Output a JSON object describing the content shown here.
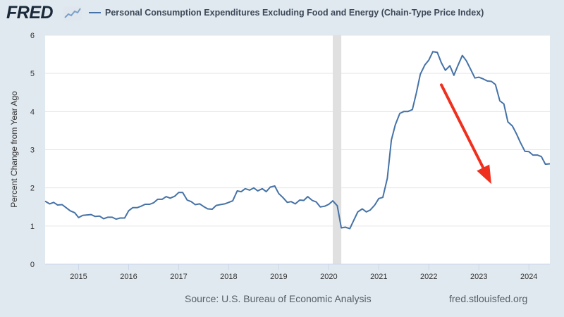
{
  "header": {
    "logo_text": "FRED",
    "logo_icon": "trend-line-icon",
    "legend_label": "Personal Consumption Expenditures Excluding Food and Energy (Chain-Type Price Index)"
  },
  "footer": {
    "source": "Source: U.S. Bureau of Economic Analysis",
    "url": "fred.stlouisfed.org"
  },
  "colors": {
    "series": "#4572a7",
    "arrow": "#f0301e",
    "recession": "#e0e0e0",
    "background": "#e1e9f0",
    "plot_background": "#ffffff"
  },
  "chart_data": {
    "type": "line",
    "title": "",
    "xlabel": "",
    "ylabel": "Percent Change from Year Ago",
    "ylim": [
      0,
      6
    ],
    "yticks": [
      0,
      1,
      2,
      3,
      4,
      5,
      6
    ],
    "xlim": [
      2014.33,
      2024.42
    ],
    "xticks": [
      {
        "label": "2015",
        "value": 2015
      },
      {
        "label": "2016",
        "value": 2016
      },
      {
        "label": "2017",
        "value": 2017
      },
      {
        "label": "2018",
        "value": 2018
      },
      {
        "label": "2019",
        "value": 2019
      },
      {
        "label": "2020",
        "value": 2020
      },
      {
        "label": "2021",
        "value": 2021
      },
      {
        "label": "2022",
        "value": 2022
      },
      {
        "label": "2023",
        "value": 2023
      },
      {
        "label": "2024",
        "value": 2024
      }
    ],
    "grid": true,
    "recession_shading": [
      {
        "start": 2020.08,
        "end": 2020.25
      }
    ],
    "annotation": {
      "type": "arrow",
      "from": [
        2022.25,
        4.7
      ],
      "to": [
        2023.25,
        2.1
      ]
    },
    "series": [
      {
        "name": "Personal Consumption Expenditures Excluding Food and Energy (Chain-Type Price Index)",
        "points": [
          [
            2014.33,
            1.65
          ],
          [
            2014.42,
            1.58
          ],
          [
            2014.5,
            1.62
          ],
          [
            2014.58,
            1.55
          ],
          [
            2014.67,
            1.56
          ],
          [
            2014.75,
            1.48
          ],
          [
            2014.83,
            1.4
          ],
          [
            2014.92,
            1.35
          ],
          [
            2015.0,
            1.22
          ],
          [
            2015.08,
            1.28
          ],
          [
            2015.17,
            1.29
          ],
          [
            2015.25,
            1.3
          ],
          [
            2015.33,
            1.25
          ],
          [
            2015.42,
            1.26
          ],
          [
            2015.5,
            1.19
          ],
          [
            2015.58,
            1.23
          ],
          [
            2015.67,
            1.23
          ],
          [
            2015.75,
            1.18
          ],
          [
            2015.83,
            1.21
          ],
          [
            2015.92,
            1.21
          ],
          [
            2016.0,
            1.4
          ],
          [
            2016.08,
            1.48
          ],
          [
            2016.17,
            1.48
          ],
          [
            2016.25,
            1.52
          ],
          [
            2016.33,
            1.57
          ],
          [
            2016.42,
            1.57
          ],
          [
            2016.5,
            1.61
          ],
          [
            2016.58,
            1.7
          ],
          [
            2016.67,
            1.7
          ],
          [
            2016.75,
            1.77
          ],
          [
            2016.83,
            1.73
          ],
          [
            2016.92,
            1.78
          ],
          [
            2017.0,
            1.88
          ],
          [
            2017.08,
            1.88
          ],
          [
            2017.17,
            1.68
          ],
          [
            2017.25,
            1.64
          ],
          [
            2017.33,
            1.56
          ],
          [
            2017.42,
            1.58
          ],
          [
            2017.5,
            1.51
          ],
          [
            2017.58,
            1.45
          ],
          [
            2017.67,
            1.44
          ],
          [
            2017.75,
            1.54
          ],
          [
            2017.83,
            1.56
          ],
          [
            2017.92,
            1.58
          ],
          [
            2018.0,
            1.62
          ],
          [
            2018.08,
            1.66
          ],
          [
            2018.17,
            1.92
          ],
          [
            2018.25,
            1.9
          ],
          [
            2018.33,
            1.98
          ],
          [
            2018.42,
            1.94
          ],
          [
            2018.5,
            2.0
          ],
          [
            2018.58,
            1.92
          ],
          [
            2018.67,
            1.98
          ],
          [
            2018.75,
            1.9
          ],
          [
            2018.83,
            2.02
          ],
          [
            2018.92,
            2.05
          ],
          [
            2019.0,
            1.85
          ],
          [
            2019.08,
            1.75
          ],
          [
            2019.17,
            1.62
          ],
          [
            2019.25,
            1.64
          ],
          [
            2019.33,
            1.58
          ],
          [
            2019.42,
            1.68
          ],
          [
            2019.5,
            1.67
          ],
          [
            2019.58,
            1.77
          ],
          [
            2019.67,
            1.67
          ],
          [
            2019.75,
            1.63
          ],
          [
            2019.83,
            1.5
          ],
          [
            2019.92,
            1.52
          ],
          [
            2020.0,
            1.57
          ],
          [
            2020.08,
            1.66
          ],
          [
            2020.17,
            1.53
          ],
          [
            2020.25,
            0.95
          ],
          [
            2020.33,
            0.97
          ],
          [
            2020.42,
            0.93
          ],
          [
            2020.5,
            1.15
          ],
          [
            2020.58,
            1.37
          ],
          [
            2020.67,
            1.45
          ],
          [
            2020.75,
            1.37
          ],
          [
            2020.83,
            1.42
          ],
          [
            2020.92,
            1.55
          ],
          [
            2021.0,
            1.72
          ],
          [
            2021.08,
            1.75
          ],
          [
            2021.17,
            2.25
          ],
          [
            2021.25,
            3.25
          ],
          [
            2021.33,
            3.65
          ],
          [
            2021.42,
            3.95
          ],
          [
            2021.5,
            4.0
          ],
          [
            2021.58,
            4.0
          ],
          [
            2021.67,
            4.05
          ],
          [
            2021.75,
            4.48
          ],
          [
            2021.83,
            4.98
          ],
          [
            2021.92,
            5.22
          ],
          [
            2022.0,
            5.35
          ],
          [
            2022.08,
            5.57
          ],
          [
            2022.17,
            5.55
          ],
          [
            2022.25,
            5.28
          ],
          [
            2022.33,
            5.08
          ],
          [
            2022.42,
            5.2
          ],
          [
            2022.5,
            4.95
          ],
          [
            2022.58,
            5.2
          ],
          [
            2022.67,
            5.47
          ],
          [
            2022.75,
            5.33
          ],
          [
            2022.83,
            5.12
          ],
          [
            2022.92,
            4.88
          ],
          [
            2023.0,
            4.9
          ],
          [
            2023.08,
            4.86
          ],
          [
            2023.17,
            4.8
          ],
          [
            2023.25,
            4.79
          ],
          [
            2023.33,
            4.71
          ],
          [
            2023.42,
            4.28
          ],
          [
            2023.5,
            4.2
          ],
          [
            2023.58,
            3.73
          ],
          [
            2023.67,
            3.62
          ],
          [
            2023.75,
            3.42
          ],
          [
            2023.83,
            3.19
          ],
          [
            2023.92,
            2.96
          ],
          [
            2024.0,
            2.95
          ],
          [
            2024.08,
            2.86
          ],
          [
            2024.17,
            2.86
          ],
          [
            2024.25,
            2.82
          ],
          [
            2024.33,
            2.62
          ],
          [
            2024.42,
            2.63
          ]
        ]
      }
    ]
  }
}
